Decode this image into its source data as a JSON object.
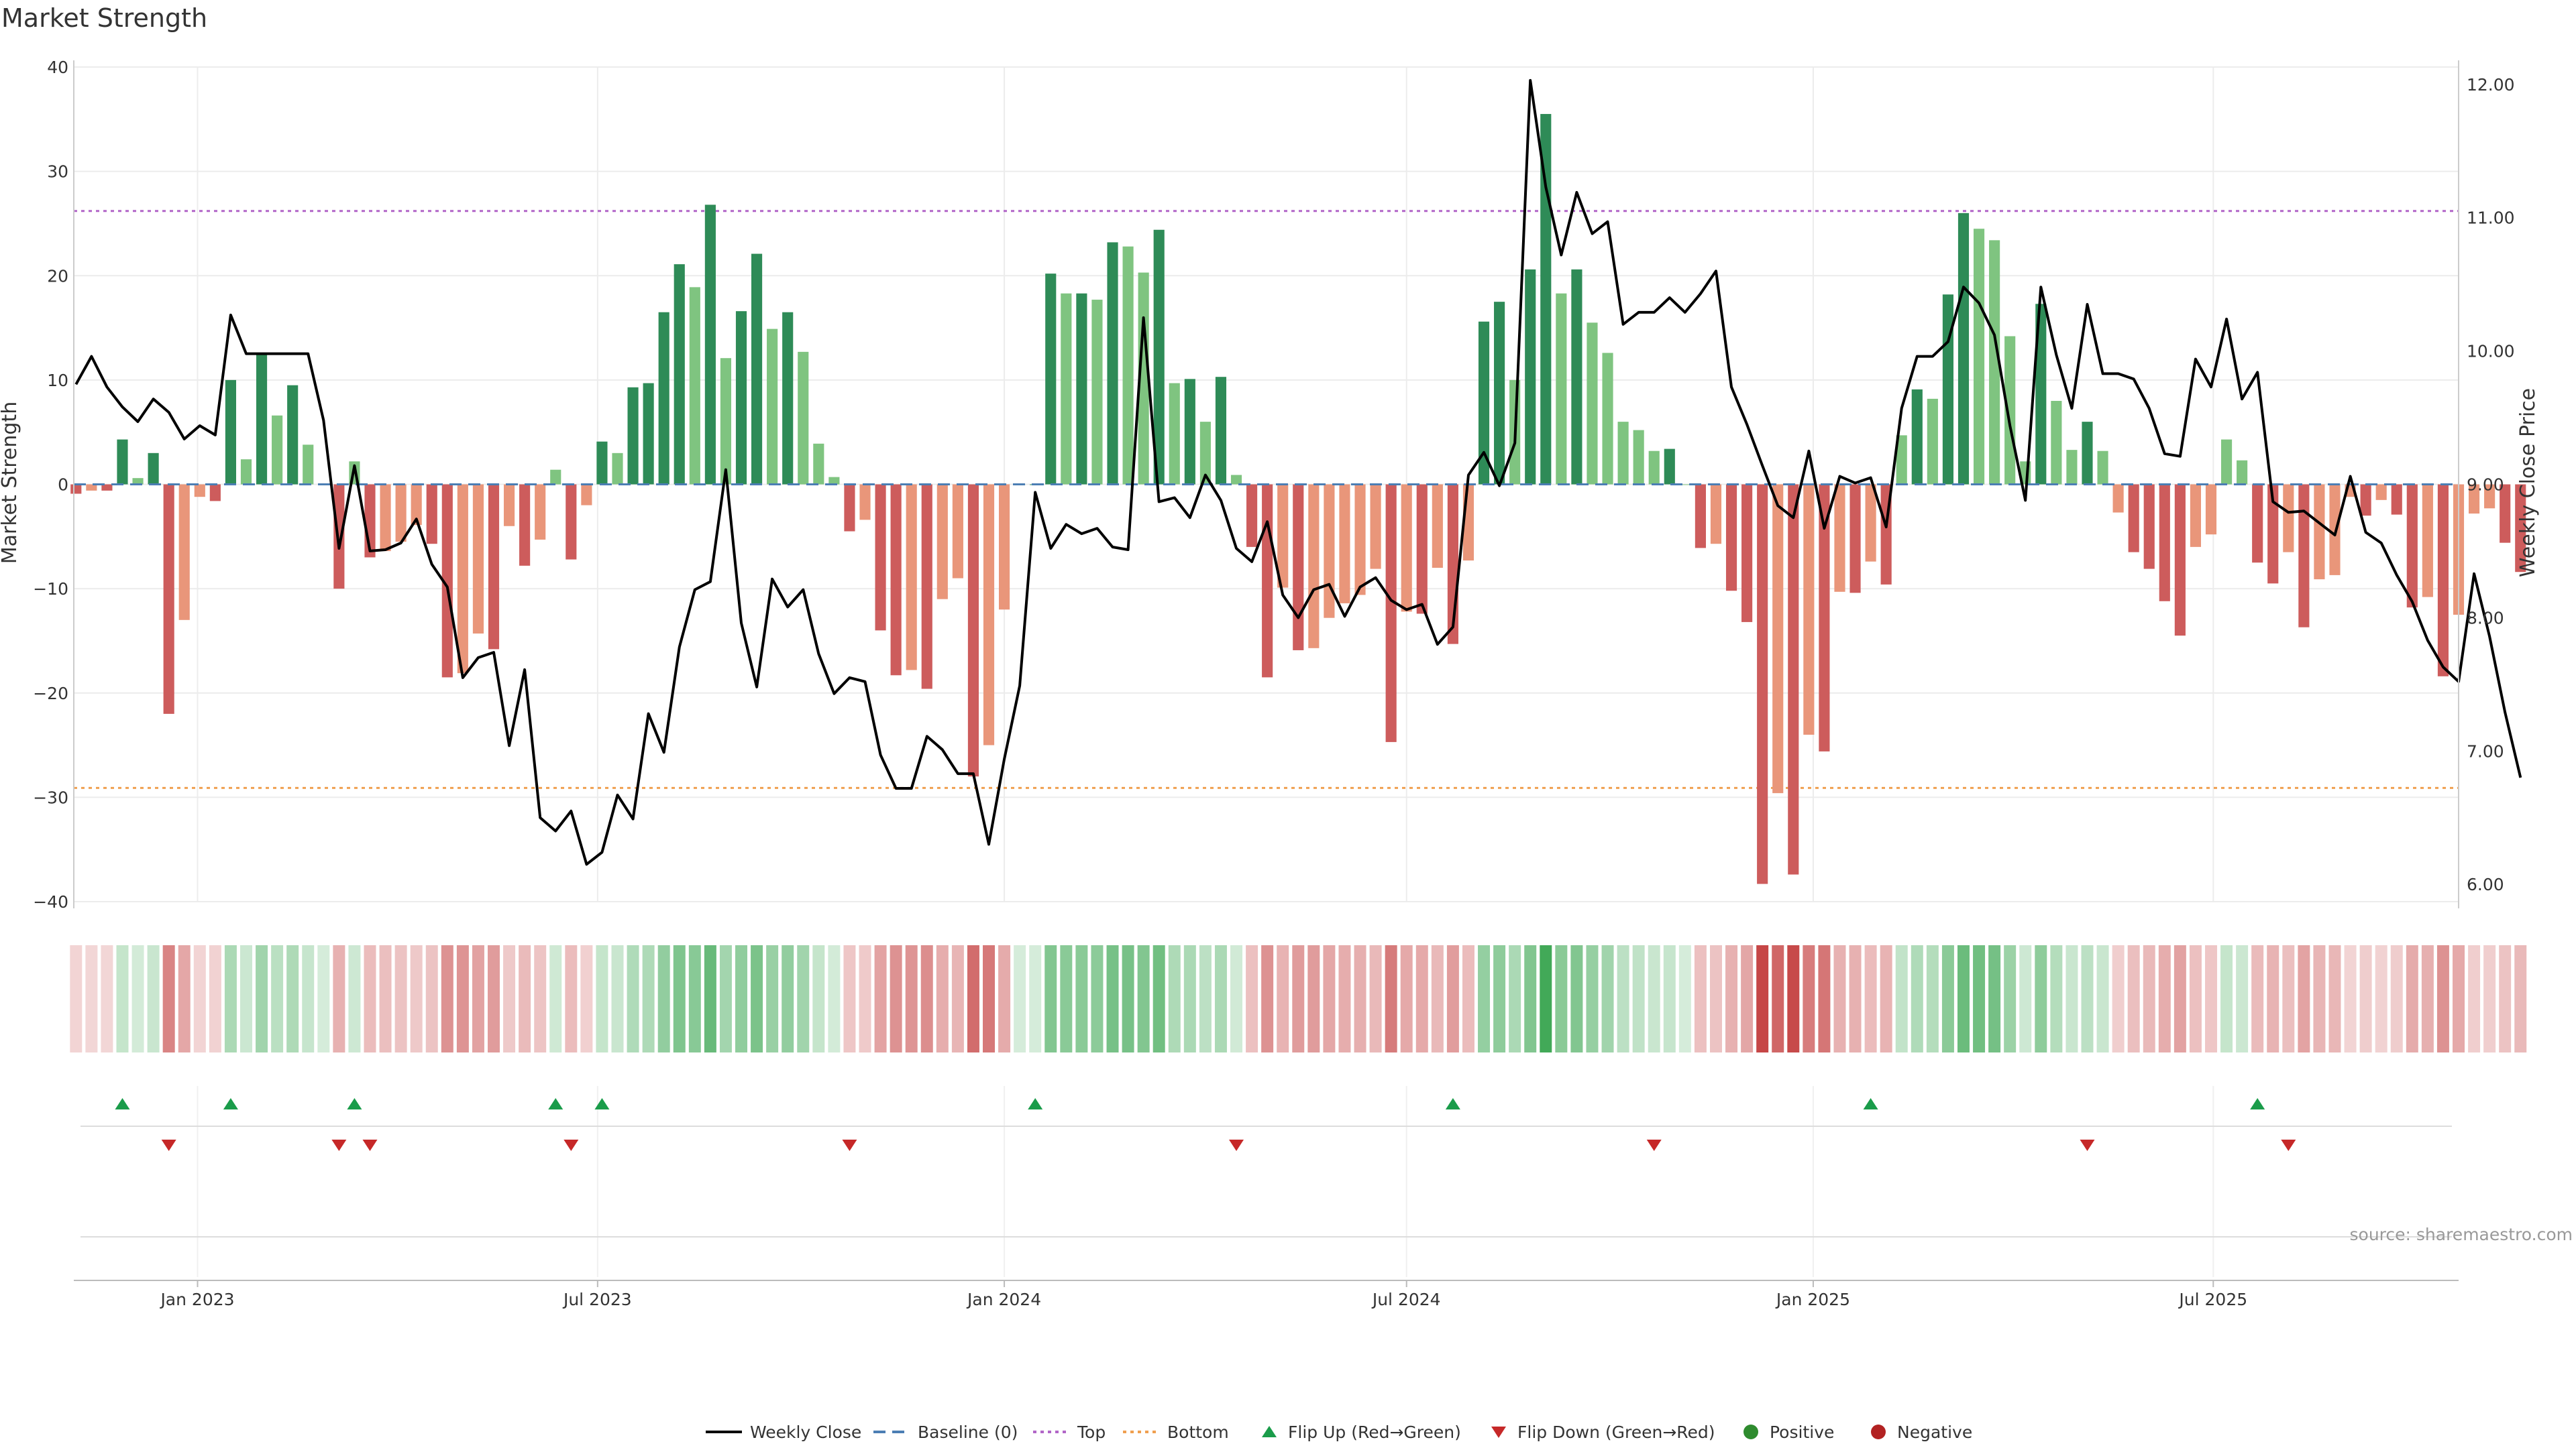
{
  "chart_data": {
    "type": "bar",
    "title": "Market Strength",
    "ylabel": "Market Strength",
    "y2label": "Weekly Close Price",
    "ylim": [
      -40,
      40
    ],
    "y2lim": [
      5.87,
      12.13
    ],
    "xlim": [
      "2022-11-06",
      "2025-10-20"
    ],
    "y_ticks": [
      {
        "value": 40,
        "label": "40"
      },
      {
        "value": 30,
        "label": "30"
      },
      {
        "value": 20,
        "label": "20"
      },
      {
        "value": 10,
        "label": "10"
      },
      {
        "value": 0,
        "label": "0"
      },
      {
        "value": -10,
        "label": "−10"
      },
      {
        "value": -20,
        "label": "−20"
      },
      {
        "value": -30,
        "label": "−30"
      },
      {
        "value": -40,
        "label": "−40"
      }
    ],
    "y2_ticks": [
      {
        "value": 12,
        "label": "12.00"
      },
      {
        "value": 11,
        "label": "11.00"
      },
      {
        "value": 10,
        "label": "10.00"
      },
      {
        "value": 9,
        "label": "9.00"
      },
      {
        "value": 8,
        "label": "8.00"
      },
      {
        "value": 7,
        "label": "7.00"
      },
      {
        "value": 6,
        "label": "6.00"
      }
    ],
    "x_ticks": [
      {
        "date": "2023-01-01",
        "label": "Jan 2023"
      },
      {
        "date": "2023-07-01",
        "label": "Jul 2023"
      },
      {
        "date": "2024-01-01",
        "label": "Jan 2024"
      },
      {
        "date": "2024-07-01",
        "label": "Jul 2024"
      },
      {
        "date": "2025-01-01",
        "label": "Jan 2025"
      },
      {
        "date": "2025-07-01",
        "label": "Jul 2025"
      }
    ],
    "start_date": "2022-11-07",
    "weeks": 156,
    "strength": [
      -0.9,
      -0.6,
      -0.6,
      4.3,
      0.6,
      3,
      -22,
      -13,
      -1.2,
      -1.6,
      10,
      2.4,
      12.6,
      6.6,
      9.5,
      3.8,
      0,
      -10,
      2.2,
      -7,
      -6.4,
      -5.5,
      -3.9,
      -5.7,
      -18.5,
      -18.1,
      -14.3,
      -15.8,
      -4,
      -7.8,
      -5.3,
      1.4,
      -7.2,
      -2,
      4.1,
      3,
      9.3,
      9.7,
      16.5,
      21.1,
      18.9,
      26.8,
      12.1,
      16.6,
      22.1,
      14.9,
      16.5,
      12.7,
      3.9,
      0.7,
      -4.5,
      -3.4,
      -14,
      -18.3,
      -17.8,
      -19.6,
      -11,
      -9,
      -28,
      -25,
      -12,
      0,
      0,
      20.2,
      18.3,
      18.3,
      17.7,
      23.2,
      22.8,
      20.3,
      24.4,
      9.7,
      10.1,
      6,
      10.3,
      0.9,
      -6,
      -18.5,
      -9.9,
      -15.9,
      -15.7,
      -12.8,
      -11.4,
      -10.6,
      -8.1,
      -24.7,
      -12.2,
      -12.4,
      -8,
      -15.3,
      -7.3,
      15.6,
      17.5,
      10,
      20.6,
      35.5,
      18.3,
      20.6,
      15.5,
      12.6,
      6,
      5.2,
      3.2,
      3.4,
      0,
      -6.1,
      -5.7,
      -10.2,
      -13.2,
      -38.3,
      -29.6,
      -37.4,
      -24,
      -25.6,
      -10.3,
      -10.4,
      -7.4,
      -9.6,
      4.7,
      9.1,
      8.2,
      18.2,
      26,
      24.5,
      23.4,
      14.2,
      2.2,
      17.3,
      8,
      3.3,
      6,
      3.2,
      -2.7,
      -6.5,
      -8.1,
      -11.2,
      -14.5,
      -6,
      -4.8,
      4.3,
      2.3,
      -7.5,
      -9.5,
      -6.5,
      -13.7,
      -9.1,
      -8.7,
      -1.2,
      -3,
      -1.5,
      -2.9,
      -11.8,
      -10.8,
      -18.4,
      -12.5,
      -2.8,
      -2.3,
      -5.6,
      -8.4
    ],
    "close": [
      9.75,
      9.96,
      9.73,
      9.58,
      9.47,
      9.64,
      9.54,
      9.34,
      9.44,
      9.37,
      10.27,
      9.98,
      9.98,
      9.98,
      9.98,
      9.98,
      9.48,
      8.52,
      9.14,
      8.5,
      8.51,
      8.56,
      8.74,
      8.4,
      8.23,
      7.55,
      7.7,
      7.74,
      7.04,
      7.61,
      6.5,
      6.4,
      6.55,
      6.15,
      6.24,
      6.67,
      6.49,
      7.28,
      6.99,
      7.78,
      8.21,
      8.27,
      9.11,
      7.96,
      7.48,
      8.29,
      8.08,
      8.21,
      7.73,
      7.43,
      7.55,
      7.52,
      6.97,
      6.72,
      6.72,
      7.11,
      7.01,
      6.83,
      6.83,
      6.3,
      6.94,
      7.49,
      8.94,
      8.52,
      8.7,
      8.63,
      8.67,
      8.53,
      8.51,
      10.25,
      8.87,
      8.9,
      8.75,
      9.07,
      8.88,
      8.52,
      8.42,
      8.72,
      8.17,
      8.0,
      8.21,
      8.25,
      8.01,
      8.23,
      8.3,
      8.13,
      8.06,
      8.1,
      7.8,
      7.93,
      9.07,
      9.24,
      8.99,
      9.31,
      12.03,
      11.23,
      10.72,
      11.19,
      10.88,
      10.97,
      10.2,
      10.29,
      10.29,
      10.4,
      10.29,
      10.43,
      10.6,
      9.73,
      9.45,
      9.14,
      8.84,
      8.75,
      9.25,
      8.67,
      9.06,
      9.01,
      9.05,
      8.68,
      9.57,
      9.96,
      9.96,
      10.07,
      10.48,
      10.36,
      10.12,
      9.44,
      8.88,
      10.48,
      9.97,
      9.57,
      10.35,
      9.83,
      9.83,
      9.79,
      9.57,
      9.23,
      9.21,
      9.94,
      9.73,
      10.24,
      9.64,
      9.84,
      8.87,
      8.79,
      8.8,
      8.71,
      8.62,
      9.06,
      8.64,
      8.56,
      8.32,
      8.12,
      7.83,
      7.63,
      7.52,
      8.33,
      7.86,
      7.29,
      6.8
    ],
    "top": 26.2,
    "bottom": -29.1,
    "flip_up_weeks": [
      3,
      10,
      18,
      31,
      34,
      62,
      89,
      116,
      141
    ],
    "flip_down_weeks": [
      6,
      17,
      19,
      32,
      50,
      75,
      102,
      130,
      143
    ],
    "legend": [
      "Weekly Close",
      "Baseline (0)",
      "Top",
      "Bottom",
      "Flip Up (Red→Green)",
      "Flip Down (Green→Red)",
      "Positive",
      "Negative"
    ],
    "source": "source: sharemaestro.com"
  },
  "colors": {
    "pos_dark": "#2e8b57",
    "pos_light": "#7fc480",
    "neg_dark": "#cd5c5c",
    "neg_light": "#e9967a",
    "close_line": "#000000",
    "baseline": "#4c7eb4",
    "top": "#b266c8",
    "bottom": "#f0a050",
    "flip_up": "#1a9c4a",
    "flip_down": "#c62828",
    "positive_dot": "#2e8b2e",
    "negative_dot": "#b22222",
    "grid": "#ececec",
    "axis": "#cccccc"
  }
}
